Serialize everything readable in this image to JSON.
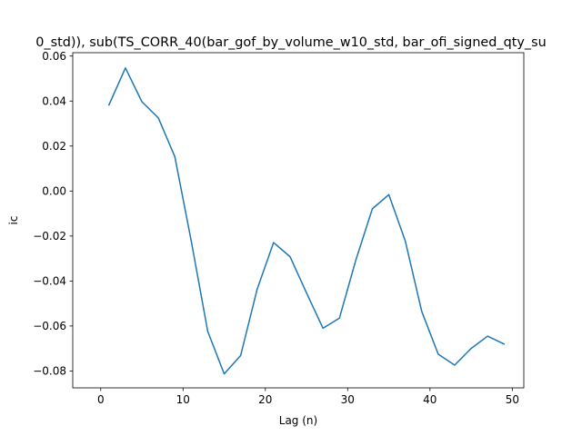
{
  "chart_data": {
    "type": "line",
    "title": "0_std)), sub(TS_CORR_40(bar_gof_by_volume_w10_std, bar_ofi_signed_qty_su",
    "xlabel": "Lag (n)",
    "ylabel": "ic",
    "xlim": [
      -3.4,
      51.4
    ],
    "ylim": [
      -0.0875,
      0.0615
    ],
    "xticks": [
      0,
      10,
      20,
      30,
      40,
      50
    ],
    "xtick_labels": [
      "0",
      "10",
      "20",
      "30",
      "40",
      "50"
    ],
    "yticks": [
      -0.08,
      -0.06,
      -0.04,
      -0.02,
      0.0,
      0.02,
      0.04,
      0.06
    ],
    "ytick_labels": [
      "−0.08",
      "−0.06",
      "−0.04",
      "−0.02",
      "0.00",
      "0.02",
      "0.04",
      "0.06"
    ],
    "grid": false,
    "series": [
      {
        "color": "#1f77b4",
        "x": [
          1,
          3,
          5,
          7,
          9,
          11,
          13,
          15,
          17,
          19,
          21,
          23,
          25,
          27,
          29,
          31,
          33,
          35,
          37,
          39,
          41,
          43,
          45,
          47,
          49
        ],
        "y": [
          0.0383,
          0.0547,
          0.0397,
          0.0325,
          0.0153,
          -0.0223,
          -0.0624,
          -0.0813,
          -0.0731,
          -0.0437,
          -0.0229,
          -0.0292,
          -0.0453,
          -0.061,
          -0.0565,
          -0.0306,
          -0.0079,
          -0.0016,
          -0.0222,
          -0.0535,
          -0.0725,
          -0.0774,
          -0.07,
          -0.0645,
          -0.068
        ]
      }
    ]
  }
}
